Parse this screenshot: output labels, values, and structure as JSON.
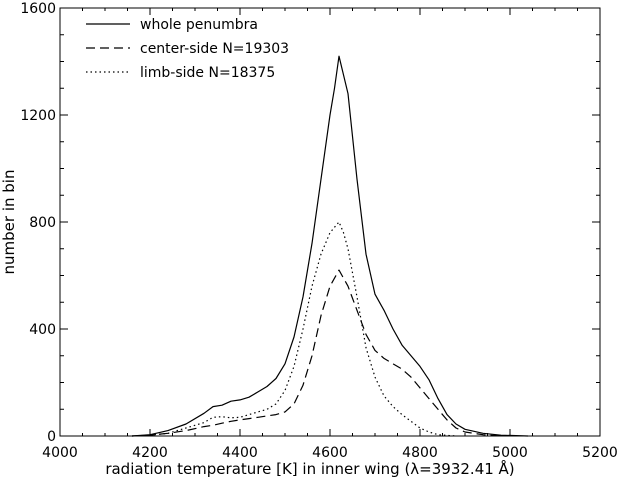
{
  "chart_data": {
    "type": "line",
    "xlabel": "radiation temperature [K] in inner wing (λ=3932.41 Å)",
    "ylabel": "number in bin",
    "xlim": [
      4000,
      5200
    ],
    "ylim": [
      0,
      1600
    ],
    "xticks": [
      "4000",
      "4200",
      "4400",
      "4600",
      "4800",
      "5000",
      "5200"
    ],
    "yticks": [
      "0",
      "400",
      "800",
      "1200",
      "1600"
    ],
    "legend_placement": "top-left",
    "grid": false,
    "series": [
      {
        "name": "whole penumbra",
        "style": "solid",
        "x": [
          4160,
          4200,
          4240,
          4280,
          4320,
          4340,
          4360,
          4380,
          4400,
          4420,
          4440,
          4460,
          4480,
          4500,
          4520,
          4540,
          4560,
          4580,
          4600,
          4610,
          4620,
          4630,
          4640,
          4660,
          4680,
          4700,
          4720,
          4740,
          4760,
          4780,
          4800,
          4820,
          4840,
          4860,
          4880,
          4900,
          4940,
          4980,
          5040
        ],
        "y": [
          0,
          5,
          20,
          45,
          85,
          110,
          115,
          130,
          135,
          145,
          165,
          185,
          215,
          270,
          370,
          520,
          720,
          960,
          1200,
          1300,
          1420,
          1350,
          1280,
          960,
          680,
          530,
          470,
          400,
          340,
          300,
          260,
          210,
          140,
          80,
          45,
          25,
          10,
          3,
          0
        ]
      },
      {
        "name": "center-side N=19303",
        "style": "dashed",
        "x": [
          4160,
          4200,
          4240,
          4280,
          4320,
          4340,
          4360,
          4380,
          4400,
          4420,
          4440,
          4460,
          4480,
          4500,
          4520,
          4540,
          4560,
          4580,
          4600,
          4620,
          4640,
          4660,
          4680,
          4700,
          4720,
          4740,
          4760,
          4780,
          4800,
          4820,
          4840,
          4860,
          4880,
          4900,
          4940,
          4980
        ],
        "y": [
          0,
          3,
          10,
          20,
          35,
          40,
          48,
          55,
          60,
          65,
          70,
          75,
          80,
          90,
          120,
          190,
          300,
          450,
          560,
          620,
          560,
          470,
          380,
          320,
          290,
          270,
          250,
          220,
          180,
          140,
          100,
          60,
          30,
          15,
          5,
          0
        ]
      },
      {
        "name": "limb-side N=18375",
        "style": "dotted",
        "x": [
          4160,
          4200,
          4240,
          4280,
          4320,
          4340,
          4360,
          4380,
          4400,
          4420,
          4440,
          4460,
          4480,
          4500,
          4520,
          4540,
          4560,
          4580,
          4600,
          4610,
          4620,
          4630,
          4640,
          4660,
          4680,
          4700,
          4720,
          4740,
          4760,
          4780,
          4800,
          4820,
          4840,
          4880
        ],
        "y": [
          0,
          3,
          10,
          30,
          50,
          70,
          72,
          68,
          70,
          80,
          90,
          100,
          120,
          170,
          260,
          400,
          560,
          680,
          760,
          780,
          800,
          760,
          700,
          520,
          330,
          220,
          150,
          110,
          80,
          55,
          30,
          15,
          5,
          0
        ]
      }
    ]
  }
}
